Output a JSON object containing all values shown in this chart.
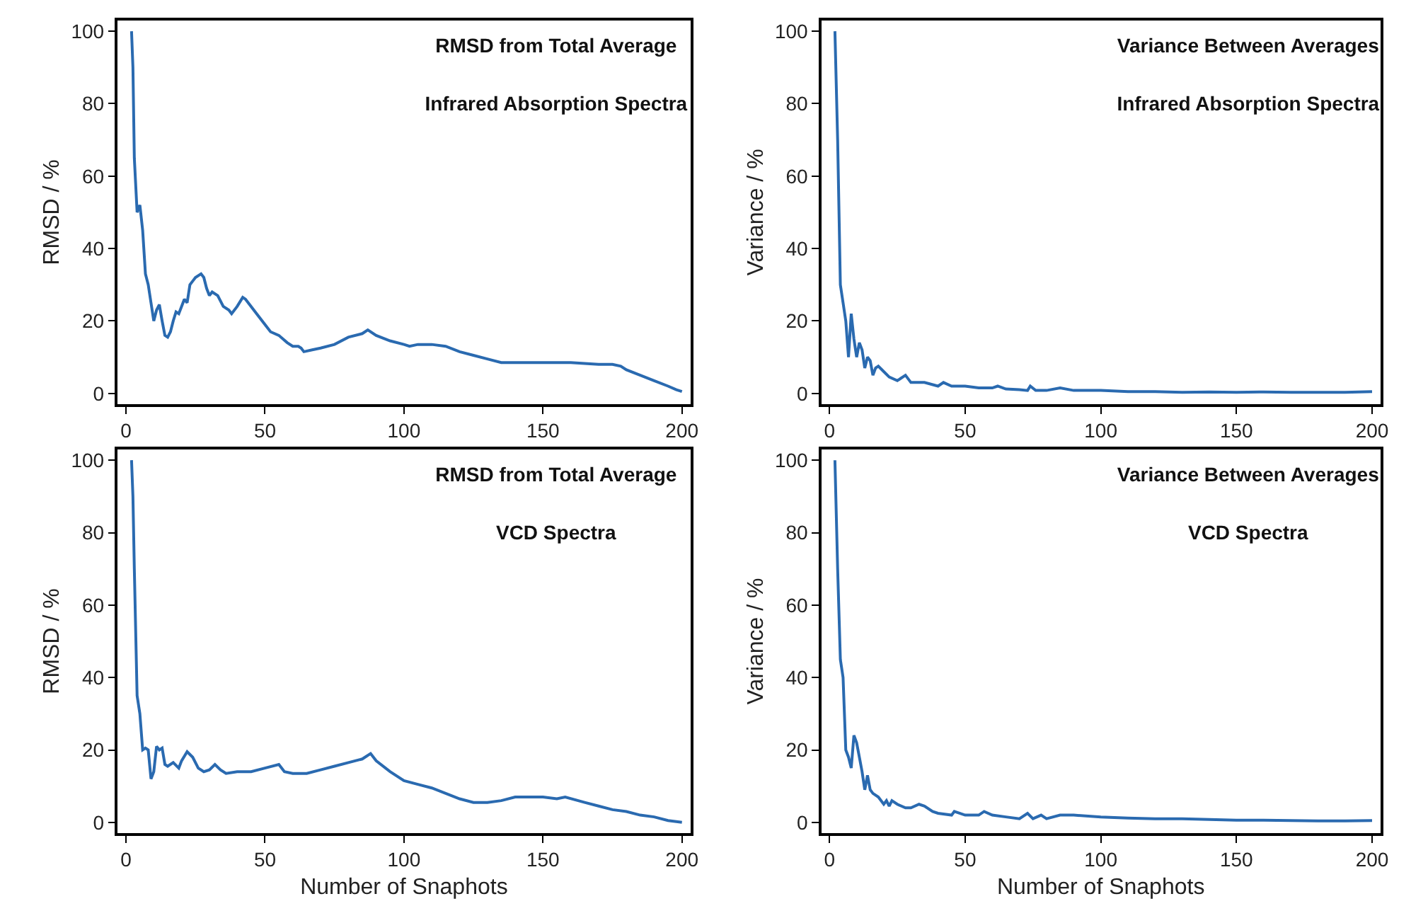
{
  "chart_data": [
    {
      "type": "line",
      "ylabel": "RMSD / %",
      "annotations": [
        "RMSD from Total Average",
        "Infrared Absorption Spectra"
      ],
      "xlim": [
        -3,
        203
      ],
      "ylim": [
        -3,
        103
      ],
      "xticks": [
        0,
        50,
        100,
        150,
        200
      ],
      "yticks": [
        0,
        20,
        40,
        60,
        80,
        100
      ],
      "series": [
        {
          "color": "#2a6ab0",
          "x": [
            2,
            2.5,
            3,
            4,
            5,
            6,
            7,
            8,
            9,
            10,
            11,
            12,
            13,
            14,
            15,
            16,
            17,
            18,
            19,
            20,
            21,
            22,
            23,
            24,
            25,
            27,
            28,
            29,
            30,
            31,
            33,
            35,
            37,
            38,
            40,
            42,
            43,
            45,
            47,
            50,
            52,
            55,
            58,
            60,
            62,
            63,
            64,
            67,
            70,
            75,
            80,
            85,
            87,
            90,
            95,
            100,
            102,
            105,
            110,
            115,
            120,
            125,
            130,
            135,
            140,
            150,
            160,
            170,
            175,
            178,
            180,
            185,
            190,
            195,
            198,
            200
          ],
          "values": [
            100,
            90,
            65,
            50,
            52,
            45,
            33,
            30,
            25,
            20,
            23,
            24.5,
            20,
            16,
            15.5,
            17,
            20,
            22.5,
            22,
            24,
            26,
            25,
            30,
            31,
            32,
            33,
            32,
            29,
            27,
            28,
            27,
            24,
            23,
            22,
            24,
            26.5,
            26,
            24,
            22,
            19,
            17,
            16,
            14,
            13,
            13,
            12.5,
            11.5,
            12,
            12.5,
            13.5,
            15.5,
            16.5,
            17.5,
            16,
            14.5,
            13.5,
            13,
            13.5,
            13.5,
            13,
            11.5,
            10.5,
            9.5,
            8.5,
            8.5,
            8.5,
            8.5,
            8,
            8,
            7.5,
            6.5,
            5,
            3.5,
            2,
            1,
            0.5
          ]
        }
      ]
    },
    {
      "type": "line",
      "ylabel": "Variance / %",
      "annotations": [
        "Variance Between Averages",
        "Infrared Absorption Spectra"
      ],
      "xlim": [
        -3,
        203
      ],
      "ylim": [
        -3,
        103
      ],
      "xticks": [
        0,
        50,
        100,
        150,
        200
      ],
      "yticks": [
        0,
        20,
        40,
        60,
        80,
        100
      ],
      "series": [
        {
          "color": "#2a6ab0",
          "x": [
            2,
            3,
            4,
            5,
            6,
            7,
            8,
            9,
            10,
            11,
            12,
            13,
            14,
            15,
            16,
            17,
            18,
            20,
            22,
            25,
            28,
            30,
            35,
            40,
            42,
            45,
            50,
            55,
            60,
            62,
            65,
            70,
            73,
            74,
            76,
            80,
            85,
            90,
            100,
            110,
            120,
            130,
            140,
            150,
            160,
            170,
            180,
            190,
            200
          ],
          "values": [
            100,
            70,
            30,
            25,
            20,
            10,
            22,
            15,
            10,
            14,
            12,
            7,
            10,
            9,
            5,
            7,
            7.5,
            6,
            4.5,
            3.5,
            5,
            3,
            3,
            2,
            3,
            2,
            2,
            1.5,
            1.5,
            2,
            1.2,
            1,
            0.8,
            2,
            0.8,
            0.8,
            1.5,
            0.8,
            0.8,
            0.5,
            0.5,
            0.3,
            0.4,
            0.3,
            0.4,
            0.3,
            0.3,
            0.3,
            0.5
          ]
        }
      ]
    },
    {
      "type": "line",
      "xlabel": "Number of Snaphots",
      "ylabel": "RMSD / %",
      "annotations": [
        "RMSD from Total Average",
        "VCD Spectra"
      ],
      "xlim": [
        -3,
        203
      ],
      "ylim": [
        -3,
        103
      ],
      "xticks": [
        0,
        50,
        100,
        150,
        200
      ],
      "yticks": [
        0,
        20,
        40,
        60,
        80,
        100
      ],
      "series": [
        {
          "color": "#2a6ab0",
          "x": [
            2,
            2.5,
            3,
            4,
            5,
            6,
            7,
            8,
            9,
            10,
            11,
            12,
            13,
            14,
            15,
            17,
            19,
            20,
            22,
            24,
            26,
            28,
            30,
            32,
            34,
            36,
            40,
            45,
            50,
            55,
            57,
            60,
            65,
            70,
            75,
            80,
            85,
            88,
            90,
            95,
            100,
            105,
            110,
            115,
            120,
            125,
            130,
            135,
            140,
            150,
            155,
            158,
            165,
            170,
            175,
            180,
            185,
            190,
            195,
            200
          ],
          "values": [
            100,
            90,
            70,
            35,
            30,
            20,
            20.5,
            20,
            12,
            14,
            21,
            20,
            20.5,
            16,
            15.5,
            16.5,
            15,
            17,
            19.5,
            18,
            15,
            14,
            14.5,
            16,
            14.5,
            13.5,
            14,
            14,
            15,
            16,
            14,
            13.5,
            13.5,
            14.5,
            15.5,
            16.5,
            17.5,
            19,
            17,
            14,
            11.5,
            10.5,
            9.5,
            8,
            6.5,
            5.5,
            5.5,
            6,
            7,
            7,
            6.5,
            7,
            5.5,
            4.5,
            3.5,
            3,
            2,
            1.5,
            0.5,
            0
          ]
        }
      ]
    },
    {
      "type": "line",
      "xlabel": "Number of Snaphots",
      "ylabel": "Variance / %",
      "annotations": [
        "Variance Between Averages",
        "VCD Spectra"
      ],
      "xlim": [
        -3,
        203
      ],
      "ylim": [
        -3,
        103
      ],
      "xticks": [
        0,
        50,
        100,
        150,
        200
      ],
      "yticks": [
        0,
        20,
        40,
        60,
        80,
        100
      ],
      "series": [
        {
          "color": "#2a6ab0",
          "x": [
            2,
            3,
            4,
            5,
            6,
            7,
            8,
            9,
            10,
            11,
            12,
            13,
            14,
            15,
            16,
            18,
            20,
            21,
            22,
            23,
            25,
            28,
            30,
            33,
            35,
            38,
            40,
            45,
            46,
            50,
            55,
            57,
            60,
            65,
            70,
            73,
            75,
            78,
            80,
            85,
            90,
            100,
            110,
            120,
            130,
            140,
            150,
            160,
            170,
            180,
            190,
            200
          ],
          "values": [
            100,
            70,
            45,
            40,
            20,
            18,
            15,
            24,
            22,
            18,
            14,
            9,
            13,
            9,
            8,
            7,
            5,
            6,
            4.5,
            6,
            5,
            4,
            4,
            5,
            4.5,
            3,
            2.5,
            2,
            3,
            2,
            2,
            3,
            2,
            1.5,
            1,
            2.5,
            1,
            2,
            1,
            2,
            2,
            1.5,
            1.2,
            1,
            1,
            0.8,
            0.6,
            0.6,
            0.5,
            0.4,
            0.4,
            0.5
          ]
        }
      ]
    }
  ]
}
